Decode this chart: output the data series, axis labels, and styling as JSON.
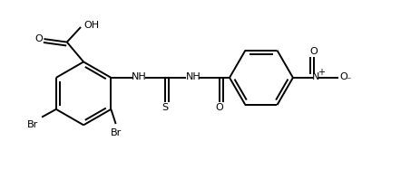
{
  "background_color": "#ffffff",
  "line_color": "black",
  "line_width": 1.4,
  "figsize": [
    4.42,
    1.98
  ],
  "dpi": 100,
  "xlim": [
    0,
    10
  ],
  "ylim": [
    0,
    4.5
  ]
}
